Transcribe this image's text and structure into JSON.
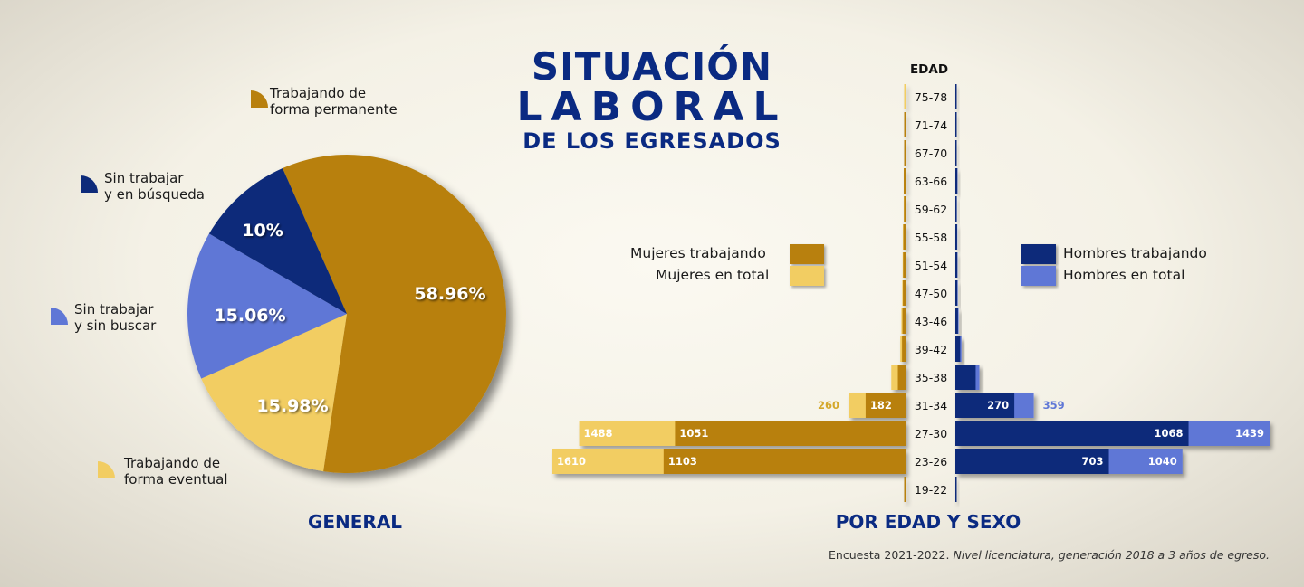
{
  "title": {
    "line1": "SITUACIÓN",
    "line2": "LABORAL",
    "line3": "DE LOS EGRESADOS"
  },
  "general_label": "GENERAL",
  "edad_sexo_label": "POR EDAD Y SEXO",
  "footnote": {
    "plain": "Encuesta 2021-2022. ",
    "italic": "Nivel licenciatura, generación 2018 a 3 años de egreso."
  },
  "colors": {
    "mujeres_trabajando": "#b8800e",
    "mujeres_total": "#f2cd62",
    "hombres_trabajando": "#0d2a7a",
    "hombres_total": "#5f77d6",
    "title": "#0a2a82"
  },
  "pie_labels": {
    "permanente": [
      "Trabajando de",
      "forma permanente"
    ],
    "busqueda": [
      "Sin trabajar",
      "y en búsqueda"
    ],
    "sin_buscar": [
      "Sin trabajar",
      "y sin buscar"
    ],
    "eventual": [
      "Trabajando de",
      "forma eventual"
    ]
  },
  "legend": {
    "mujeres_trabajando": "Mujeres trabajando",
    "mujeres_total": "Mujeres en total",
    "hombres_trabajando": "Hombres trabajando",
    "hombres_total": "Hombres en total"
  },
  "chart_data": [
    {
      "type": "pie",
      "slices": [
        {
          "label": "Trabajando de forma permanente",
          "value": 58.96,
          "text": "58.96%",
          "color": "#b8800e"
        },
        {
          "label": "Trabajando de forma eventual",
          "value": 15.98,
          "text": "15.98%",
          "color": "#f2cd62"
        },
        {
          "label": "Sin trabajar y sin buscar",
          "value": 15.06,
          "text": "15.06%",
          "color": "#5f77d6"
        },
        {
          "label": "Sin trabajar y en búsqueda",
          "value": 10,
          "text": "10%",
          "color": "#0d2a7a"
        }
      ]
    },
    {
      "type": "bar",
      "axis_title": "EDAD",
      "categories": [
        "75-78",
        "71-74",
        "67-70",
        "63-66",
        "59-62",
        "55-58",
        "51-54",
        "47-50",
        "43-46",
        "39-42",
        "35-38",
        "31-34",
        "27-30",
        "23-26",
        "19-22"
      ],
      "series": [
        {
          "name": "Mujeres trabajando",
          "values": [
            0,
            1,
            1,
            8,
            7,
            10,
            11,
            12,
            14,
            16,
            35,
            182,
            1051,
            1103,
            1
          ],
          "labels": [
            "",
            "",
            "",
            "",
            "",
            "",
            "",
            "",
            "",
            "",
            "",
            "182",
            "1051",
            "1103",
            ""
          ]
        },
        {
          "name": "Mujeres en total",
          "values": [
            0,
            1,
            1,
            8,
            8,
            12,
            13,
            15,
            19,
            24,
            65,
            260,
            1488,
            1610,
            2
          ],
          "labels": [
            "",
            "",
            "",
            "",
            "",
            "",
            "",
            "",
            "",
            "",
            "",
            "260",
            "1488",
            "1610",
            ""
          ]
        },
        {
          "name": "Hombres trabajando",
          "values": [
            1,
            1,
            1,
            9,
            6,
            8,
            9,
            9,
            12,
            22,
            93,
            270,
            1068,
            703,
            1
          ],
          "labels": [
            "",
            "",
            "",
            "",
            "",
            "",
            "",
            "",
            "",
            "",
            "",
            "270",
            "1068",
            "703",
            ""
          ]
        },
        {
          "name": "Hombres en total",
          "values": [
            1,
            1,
            1,
            10,
            7,
            9,
            10,
            11,
            15,
            28,
            110,
            359,
            1439,
            1040,
            2
          ],
          "labels": [
            "",
            "",
            "",
            "",
            "",
            "",
            "",
            "",
            "",
            "",
            "",
            "359",
            "1439",
            "1040",
            ""
          ]
        }
      ]
    }
  ]
}
